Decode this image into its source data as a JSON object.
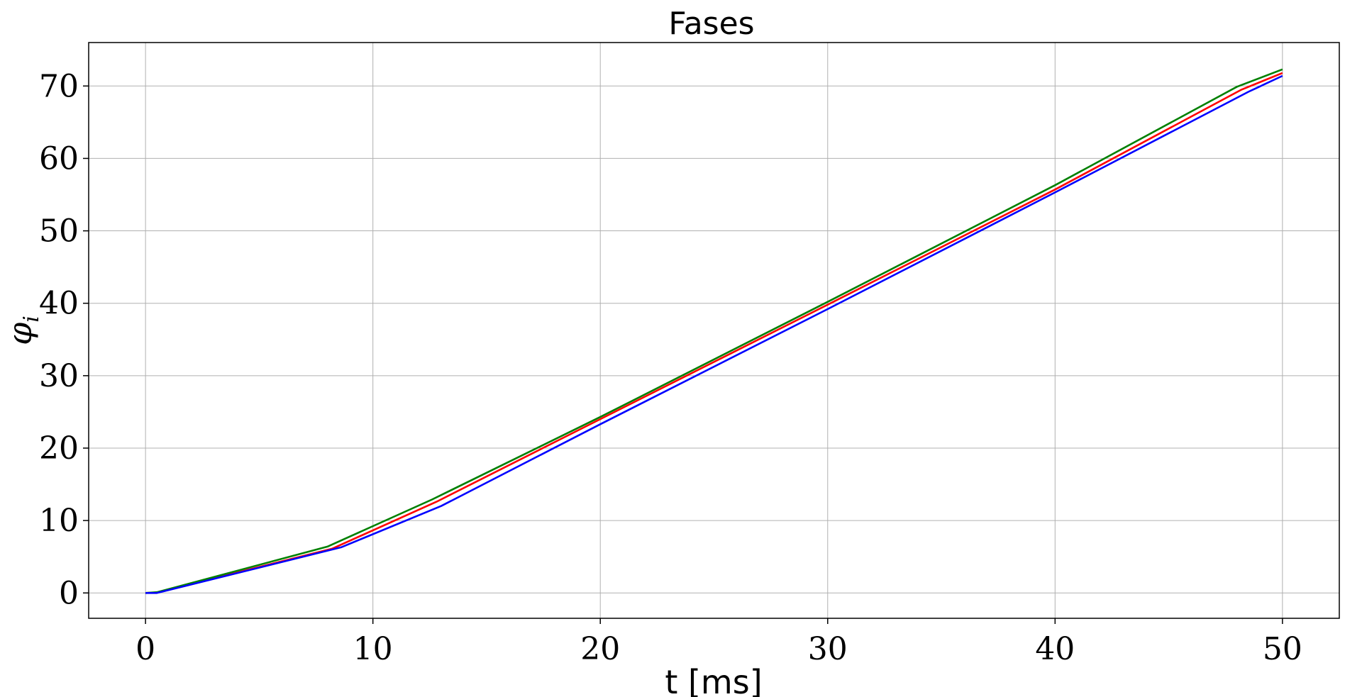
{
  "chart_data": {
    "type": "line",
    "title": "Fases",
    "xlabel": "t [ms]",
    "ylabel": "φ",
    "ylabel_sub": "i",
    "xlim": [
      -2.5,
      52.5
    ],
    "ylim": [
      -3.5,
      76
    ],
    "xticks": [
      0,
      10,
      20,
      30,
      40,
      50
    ],
    "yticks": [
      0,
      10,
      20,
      30,
      40,
      50,
      60,
      70
    ],
    "grid": true,
    "series": [
      {
        "color": "#ff0000",
        "x": [
          0,
          0.5,
          8.2,
          12.8,
          20,
          30,
          40,
          48.2,
          50
        ],
        "y": [
          0,
          0.05,
          6.1,
          12.6,
          24.0,
          39.8,
          55.7,
          69.5,
          71.8
        ]
      },
      {
        "color": "#008000",
        "x": [
          0,
          0.5,
          8.0,
          12.6,
          20,
          30,
          40,
          48.0,
          50
        ],
        "y": [
          0,
          0.1,
          6.4,
          12.9,
          24.3,
          40.2,
          56.3,
          69.9,
          72.3
        ]
      },
      {
        "color": "#0000ff",
        "x": [
          0,
          0.5,
          8.6,
          13.0,
          20,
          30,
          40,
          48.5,
          50
        ],
        "y": [
          0,
          0.0,
          6.3,
          12.0,
          23.3,
          39.2,
          55.3,
          69.2,
          71.4
        ]
      }
    ]
  }
}
